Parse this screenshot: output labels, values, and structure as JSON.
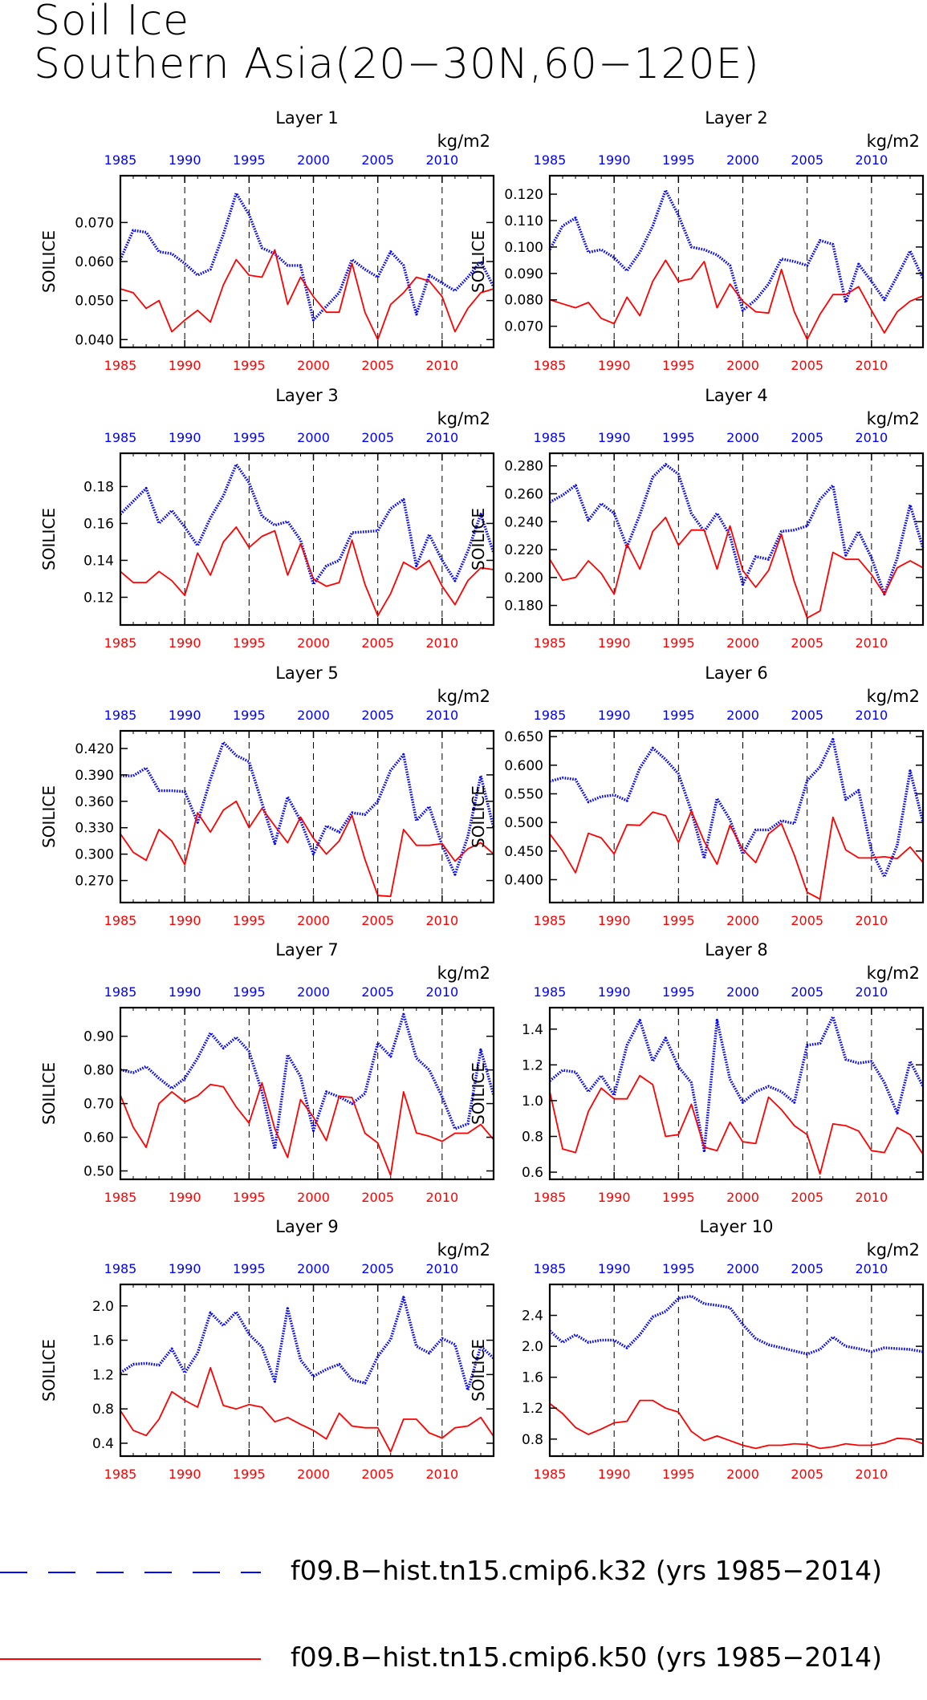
{
  "title_line1": "Soil Ice",
  "title_line2": "Southern Asia(20−30N,60−120E)",
  "units": "kg/m2",
  "ylabel": "SOILICE",
  "legend": [
    {
      "label": "f09.B−hist.tn15.cmip6.k32 (yrs 1985−2014)",
      "color": "#0000ff",
      "style": "dashed"
    },
    {
      "label": "f09.B−hist.tn15.cmip6.k50 (yrs 1985−2014)",
      "color": "#ff0000",
      "style": "solid"
    }
  ],
  "colors": {
    "blue": "#0000ff",
    "red": "#ff0000"
  },
  "chart_data": [
    {
      "type": "line",
      "title": "Layer 1",
      "x_range": [
        1985,
        2014
      ],
      "x_ticks": [
        1985,
        1990,
        1995,
        2000,
        2005,
        2010
      ],
      "ylim": [
        0.038,
        0.082
      ],
      "y_ticks": [
        0.04,
        0.05,
        0.06,
        0.07
      ],
      "y_labels": [
        "0.040",
        "0.050",
        "0.060",
        "0.070"
      ],
      "series": [
        {
          "color": "blue",
          "values": [
            0.0605,
            0.068,
            0.0675,
            0.0625,
            0.062,
            0.0595,
            0.0565,
            0.058,
            0.067,
            0.0775,
            0.072,
            0.0635,
            0.062,
            0.059,
            0.059,
            0.045,
            0.0485,
            0.052,
            0.0605,
            0.058,
            0.056,
            0.0625,
            0.059,
            0.0465,
            0.0565,
            0.0545,
            0.0525,
            0.056,
            0.06,
            0.0535
          ]
        },
        {
          "color": "red",
          "values": [
            0.053,
            0.052,
            0.048,
            0.05,
            0.042,
            0.045,
            0.0475,
            0.0445,
            0.054,
            0.0605,
            0.0565,
            0.056,
            0.063,
            0.049,
            0.056,
            0.051,
            0.047,
            0.047,
            0.0595,
            0.047,
            0.04,
            0.049,
            0.052,
            0.056,
            0.055,
            0.051,
            0.042,
            0.048,
            0.052,
            0.053
          ]
        }
      ]
    },
    {
      "type": "line",
      "title": "Layer 2",
      "x_range": [
        1985,
        2014
      ],
      "x_ticks": [
        1985,
        1990,
        1995,
        2000,
        2005,
        2010
      ],
      "ylim": [
        0.062,
        0.127
      ],
      "y_ticks": [
        0.07,
        0.08,
        0.09,
        0.1,
        0.11,
        0.12
      ],
      "y_labels": [
        "0.070",
        "0.080",
        "0.090",
        "0.100",
        "0.110",
        "0.120"
      ],
      "series": [
        {
          "color": "blue",
          "values": [
            0.099,
            0.108,
            0.111,
            0.098,
            0.099,
            0.096,
            0.091,
            0.098,
            0.108,
            0.1215,
            0.112,
            0.1,
            0.099,
            0.097,
            0.093,
            0.076,
            0.08,
            0.086,
            0.0955,
            0.0945,
            0.093,
            0.1025,
            0.101,
            0.079,
            0.0935,
            0.087,
            0.08,
            0.089,
            0.0985,
            0.088
          ]
        },
        {
          "color": "red",
          "values": [
            0.08,
            0.0785,
            0.077,
            0.079,
            0.073,
            0.071,
            0.081,
            0.074,
            0.087,
            0.095,
            0.087,
            0.088,
            0.0945,
            0.077,
            0.086,
            0.0795,
            0.0755,
            0.075,
            0.0915,
            0.0755,
            0.065,
            0.0745,
            0.082,
            0.082,
            0.085,
            0.076,
            0.0675,
            0.0755,
            0.0795,
            0.0815
          ]
        }
      ]
    },
    {
      "type": "line",
      "title": "Layer 3",
      "x_range": [
        1985,
        2014
      ],
      "x_ticks": [
        1985,
        1990,
        1995,
        2000,
        2005,
        2010
      ],
      "ylim": [
        0.105,
        0.198
      ],
      "y_ticks": [
        0.12,
        0.14,
        0.16,
        0.18
      ],
      "y_labels": [
        "0.12",
        "0.14",
        "0.16",
        "0.18"
      ],
      "series": [
        {
          "color": "blue",
          "values": [
            0.165,
            0.172,
            0.179,
            0.16,
            0.167,
            0.158,
            0.148,
            0.163,
            0.175,
            0.192,
            0.182,
            0.164,
            0.159,
            0.161,
            0.151,
            0.127,
            0.137,
            0.14,
            0.155,
            0.1555,
            0.156,
            0.168,
            0.173,
            0.137,
            0.154,
            0.14,
            0.129,
            0.145,
            0.165,
            0.144
          ]
        },
        {
          "color": "red",
          "values": [
            0.134,
            0.128,
            0.128,
            0.134,
            0.129,
            0.121,
            0.144,
            0.132,
            0.15,
            0.158,
            0.147,
            0.153,
            0.156,
            0.132,
            0.149,
            0.13,
            0.126,
            0.128,
            0.151,
            0.127,
            0.11,
            0.122,
            0.139,
            0.135,
            0.14,
            0.126,
            0.116,
            0.129,
            0.136,
            0.135
          ]
        }
      ]
    },
    {
      "type": "line",
      "title": "Layer 4",
      "x_range": [
        1985,
        2014
      ],
      "x_ticks": [
        1985,
        1990,
        1995,
        2000,
        2005,
        2010
      ],
      "ylim": [
        0.166,
        0.289
      ],
      "y_ticks": [
        0.18,
        0.2,
        0.22,
        0.24,
        0.26,
        0.28
      ],
      "y_labels": [
        "0.180",
        "0.200",
        "0.220",
        "0.240",
        "0.260",
        "0.280"
      ],
      "series": [
        {
          "color": "blue",
          "values": [
            0.254,
            0.259,
            0.266,
            0.241,
            0.253,
            0.246,
            0.222,
            0.245,
            0.272,
            0.281,
            0.274,
            0.246,
            0.233,
            0.246,
            0.23,
            0.195,
            0.215,
            0.213,
            0.233,
            0.234,
            0.237,
            0.256,
            0.266,
            0.216,
            0.233,
            0.214,
            0.188,
            0.214,
            0.252,
            0.221
          ]
        },
        {
          "color": "red",
          "values": [
            0.213,
            0.198,
            0.2,
            0.212,
            0.203,
            0.188,
            0.224,
            0.206,
            0.233,
            0.243,
            0.223,
            0.234,
            0.234,
            0.206,
            0.237,
            0.205,
            0.193,
            0.205,
            0.231,
            0.197,
            0.171,
            0.176,
            0.218,
            0.213,
            0.213,
            0.202,
            0.188,
            0.207,
            0.212,
            0.207
          ]
        }
      ]
    },
    {
      "type": "line",
      "title": "Layer 5",
      "x_range": [
        1985,
        2014
      ],
      "x_ticks": [
        1985,
        1990,
        1995,
        2000,
        2005,
        2010
      ],
      "ylim": [
        0.245,
        0.44
      ],
      "y_ticks": [
        0.27,
        0.3,
        0.33,
        0.36,
        0.39,
        0.42
      ],
      "y_labels": [
        "0.270",
        "0.300",
        "0.330",
        "0.360",
        "0.390",
        "0.420"
      ],
      "series": [
        {
          "color": "blue",
          "values": [
            0.389,
            0.389,
            0.398,
            0.372,
            0.372,
            0.371,
            0.336,
            0.385,
            0.427,
            0.412,
            0.405,
            0.358,
            0.312,
            0.365,
            0.338,
            0.3,
            0.332,
            0.325,
            0.347,
            0.345,
            0.36,
            0.395,
            0.413,
            0.338,
            0.354,
            0.31,
            0.277,
            0.32,
            0.389,
            0.33
          ]
        },
        {
          "color": "red",
          "values": [
            0.323,
            0.302,
            0.293,
            0.328,
            0.315,
            0.288,
            0.347,
            0.325,
            0.35,
            0.36,
            0.33,
            0.352,
            0.332,
            0.313,
            0.342,
            0.318,
            0.3,
            0.315,
            0.344,
            0.294,
            0.253,
            0.252,
            0.328,
            0.31,
            0.31,
            0.312,
            0.292,
            0.306,
            0.313,
            0.3
          ]
        }
      ]
    },
    {
      "type": "line",
      "title": "Layer 6",
      "x_range": [
        1985,
        2014
      ],
      "x_ticks": [
        1985,
        1990,
        1995,
        2000,
        2005,
        2010
      ],
      "ylim": [
        0.36,
        0.66
      ],
      "y_ticks": [
        0.4,
        0.45,
        0.5,
        0.55,
        0.6,
        0.65
      ],
      "y_labels": [
        "0.400",
        "0.450",
        "0.500",
        "0.550",
        "0.600",
        "0.650"
      ],
      "series": [
        {
          "color": "blue",
          "values": [
            0.572,
            0.578,
            0.575,
            0.536,
            0.545,
            0.548,
            0.538,
            0.595,
            0.63,
            0.61,
            0.585,
            0.52,
            0.437,
            0.542,
            0.505,
            0.445,
            0.487,
            0.487,
            0.503,
            0.498,
            0.573,
            0.597,
            0.645,
            0.54,
            0.556,
            0.45,
            0.405,
            0.46,
            0.59,
            0.5
          ]
        },
        {
          "color": "red",
          "values": [
            0.48,
            0.45,
            0.412,
            0.481,
            0.473,
            0.445,
            0.496,
            0.495,
            0.518,
            0.512,
            0.465,
            0.52,
            0.467,
            0.427,
            0.495,
            0.453,
            0.43,
            0.48,
            0.498,
            0.443,
            0.378,
            0.366,
            0.509,
            0.452,
            0.438,
            0.438,
            0.44,
            0.437,
            0.457,
            0.43
          ]
        }
      ]
    },
    {
      "type": "line",
      "title": "Layer 7",
      "x_range": [
        1985,
        2014
      ],
      "x_ticks": [
        1985,
        1990,
        1995,
        2000,
        2005,
        2010
      ],
      "ylim": [
        0.475,
        0.985
      ],
      "y_ticks": [
        0.5,
        0.6,
        0.7,
        0.8,
        0.9
      ],
      "y_labels": [
        "0.50",
        "0.60",
        "0.70",
        "0.80",
        "0.90"
      ],
      "series": [
        {
          "color": "blue",
          "values": [
            0.8,
            0.792,
            0.81,
            0.775,
            0.745,
            0.775,
            0.835,
            0.91,
            0.865,
            0.897,
            0.855,
            0.735,
            0.565,
            0.845,
            0.78,
            0.62,
            0.735,
            0.72,
            0.7,
            0.73,
            0.88,
            0.84,
            0.965,
            0.835,
            0.8,
            0.72,
            0.625,
            0.64,
            0.86,
            0.725
          ]
        },
        {
          "color": "red",
          "values": [
            0.725,
            0.63,
            0.57,
            0.7,
            0.735,
            0.705,
            0.723,
            0.757,
            0.75,
            0.69,
            0.642,
            0.762,
            0.625,
            0.54,
            0.712,
            0.66,
            0.59,
            0.722,
            0.718,
            0.612,
            0.583,
            0.487,
            0.735,
            0.613,
            0.603,
            0.588,
            0.612,
            0.612,
            0.638,
            0.593
          ]
        }
      ]
    },
    {
      "type": "line",
      "title": "Layer 8",
      "x_range": [
        1985,
        2014
      ],
      "x_ticks": [
        1985,
        1990,
        1995,
        2000,
        2005,
        2010
      ],
      "ylim": [
        0.56,
        1.52
      ],
      "y_ticks": [
        0.6,
        0.8,
        1.0,
        1.2,
        1.4
      ],
      "y_labels": [
        "0.6",
        "0.8",
        "1.0",
        "1.2",
        "1.4"
      ],
      "series": [
        {
          "color": "blue",
          "values": [
            1.11,
            1.17,
            1.16,
            1.05,
            1.14,
            1.03,
            1.31,
            1.45,
            1.22,
            1.35,
            1.19,
            1.1,
            0.72,
            1.45,
            1.12,
            0.99,
            1.05,
            1.08,
            1.05,
            0.99,
            1.31,
            1.32,
            1.47,
            1.23,
            1.21,
            1.22,
            1.1,
            0.93,
            1.22,
            1.08
          ]
        },
        {
          "color": "red",
          "values": [
            1.05,
            0.73,
            0.71,
            0.94,
            1.07,
            1.01,
            1.01,
            1.14,
            1.09,
            0.8,
            0.81,
            0.98,
            0.74,
            0.72,
            0.88,
            0.77,
            0.76,
            1.02,
            0.95,
            0.86,
            0.81,
            0.59,
            0.87,
            0.86,
            0.83,
            0.72,
            0.71,
            0.85,
            0.81,
            0.7
          ]
        }
      ]
    },
    {
      "type": "line",
      "title": "Layer 9",
      "x_range": [
        1985,
        2014
      ],
      "x_ticks": [
        1985,
        1990,
        1995,
        2000,
        2005,
        2010
      ],
      "ylim": [
        0.25,
        2.25
      ],
      "y_ticks": [
        0.4,
        0.8,
        1.2,
        1.6,
        2.0
      ],
      "y_labels": [
        "0.4",
        "0.8",
        "1.2",
        "1.6",
        "2.0"
      ],
      "series": [
        {
          "color": "blue",
          "values": [
            1.22,
            1.32,
            1.33,
            1.31,
            1.5,
            1.22,
            1.45,
            1.92,
            1.77,
            1.93,
            1.67,
            1.52,
            1.12,
            1.97,
            1.37,
            1.18,
            1.26,
            1.32,
            1.14,
            1.1,
            1.41,
            1.61,
            2.1,
            1.53,
            1.45,
            1.62,
            1.55,
            1.02,
            1.53,
            1.39
          ]
        },
        {
          "color": "red",
          "values": [
            0.78,
            0.55,
            0.49,
            0.68,
            1.0,
            0.9,
            0.82,
            1.28,
            0.84,
            0.8,
            0.85,
            0.82,
            0.65,
            0.7,
            0.62,
            0.55,
            0.45,
            0.75,
            0.6,
            0.58,
            0.58,
            0.3,
            0.68,
            0.68,
            0.52,
            0.46,
            0.58,
            0.6,
            0.7,
            0.48
          ]
        }
      ]
    },
    {
      "type": "line",
      "title": "Layer 10",
      "x_range": [
        1985,
        2014
      ],
      "x_ticks": [
        1985,
        1990,
        1995,
        2000,
        2005,
        2010
      ],
      "ylim": [
        0.58,
        2.8
      ],
      "y_ticks": [
        0.8,
        1.2,
        1.6,
        2.0,
        2.4
      ],
      "y_labels": [
        "0.8",
        "1.2",
        "1.6",
        "2.0",
        "2.4"
      ],
      "series": [
        {
          "color": "blue",
          "values": [
            2.2,
            2.05,
            2.15,
            2.05,
            2.08,
            2.08,
            1.98,
            2.15,
            2.38,
            2.45,
            2.62,
            2.65,
            2.55,
            2.53,
            2.5,
            2.28,
            2.1,
            2.02,
            1.98,
            1.94,
            1.9,
            1.96,
            2.12,
            2.0,
            1.97,
            1.93,
            1.98,
            1.97,
            1.96,
            1.93
          ]
        },
        {
          "color": "red",
          "values": [
            1.26,
            1.13,
            0.95,
            0.86,
            0.93,
            1.01,
            1.03,
            1.3,
            1.3,
            1.2,
            1.15,
            0.9,
            0.78,
            0.84,
            0.78,
            0.72,
            0.68,
            0.72,
            0.72,
            0.74,
            0.73,
            0.68,
            0.7,
            0.74,
            0.72,
            0.72,
            0.75,
            0.81,
            0.8,
            0.74
          ]
        }
      ]
    }
  ]
}
